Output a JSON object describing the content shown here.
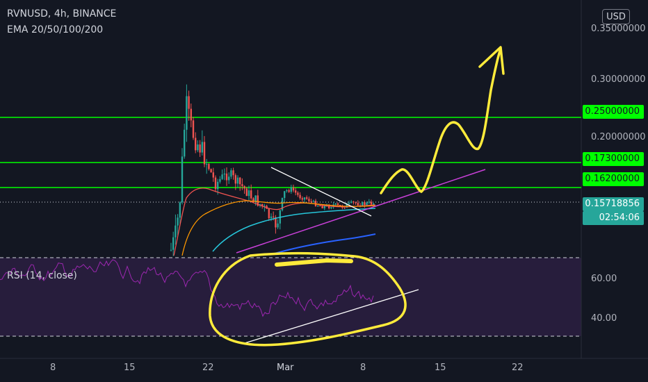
{
  "header": {
    "symbol_line": "RVNUSD, 4h, BINANCE",
    "indicator_line": "EMA 20/50/100/200",
    "rsi_label": "RSI (14, close)",
    "currency_button": "USD"
  },
  "price_axis": {
    "top_partial": "0.35000000",
    "labels": [
      "0.30000000",
      "0.25000000",
      "0.20000000",
      "0.17300000",
      "0.16200000"
    ],
    "highlighted_levels": [
      "0.25000000",
      "0.17300000",
      "0.16200000"
    ],
    "current_price": "0.15718856",
    "countdown": "02:54:06"
  },
  "rsi_axis": {
    "labels": [
      "60.00",
      "40.00"
    ]
  },
  "time_axis": {
    "labels": [
      "8",
      "15",
      "22",
      "Mar",
      "8",
      "15",
      "22"
    ]
  },
  "colors": {
    "background": "#131722",
    "level_lines": "#00ff00",
    "ema20": "#ef5350",
    "ema50": "#ff9800",
    "ema100": "#26c6da",
    "ema200": "#2962ff",
    "candle_up": "#26a69a",
    "candle_down": "#ef5350",
    "trendline_support": "#c940d9",
    "trendline_resistance": "#ffffff",
    "annotation": "#ffeb3b",
    "rsi_line": "#9c27b0",
    "rsi_band": "#2a1e3f"
  },
  "chart_data": {
    "type": "candlestick",
    "title": "RVNUSD, 4h, BINANCE",
    "indicators": [
      "EMA 20",
      "EMA 50",
      "EMA 100",
      "EMA 200",
      "RSI (14, close)"
    ],
    "price_scale": "log",
    "horizontal_levels": [
      0.25,
      0.173,
      0.162
    ],
    "current_price": 0.15718856,
    "rsi_band": [
      30,
      70
    ],
    "rsi_approx_last": 55,
    "x_ticks": [
      "8",
      "15",
      "22",
      "Mar",
      "8",
      "15",
      "22"
    ]
  }
}
